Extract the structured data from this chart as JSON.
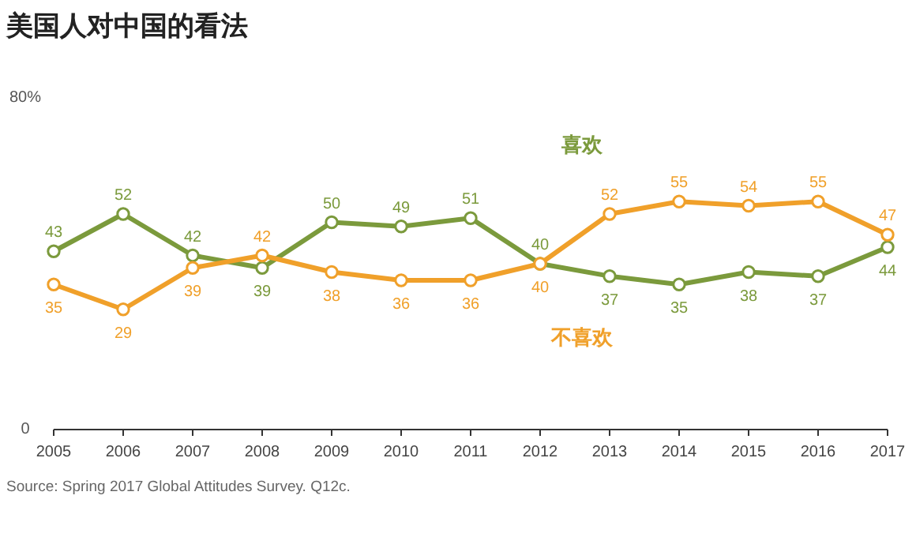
{
  "chart_data": {
    "type": "line",
    "title": "美国人对中国的看法",
    "x": [
      2005,
      2006,
      2007,
      2008,
      2009,
      2010,
      2011,
      2012,
      2013,
      2014,
      2015,
      2016,
      2017
    ],
    "xlim": [
      2005,
      2017
    ],
    "xticks": [
      2005,
      2006,
      2007,
      2008,
      2009,
      2010,
      2011,
      2012,
      2013,
      2014,
      2015,
      2016,
      2017
    ],
    "ylim": [
      0,
      80
    ],
    "yticks": [
      {
        "value": 0,
        "label": "0"
      },
      {
        "value": 80,
        "label": "80%"
      }
    ],
    "series": [
      {
        "name": "喜欢",
        "color": "#7b9a3c",
        "values": [
          43,
          52,
          42,
          39,
          50,
          49,
          51,
          40,
          37,
          35,
          38,
          37,
          44
        ]
      },
      {
        "name": "不喜欢",
        "color": "#f0a02a",
        "values": [
          35,
          29,
          39,
          42,
          38,
          36,
          36,
          40,
          52,
          55,
          54,
          55,
          47
        ]
      }
    ],
    "marker": "circle",
    "line_style": "solid",
    "data_labels": true,
    "grid": false,
    "annotations": [
      "Source: Spring 2017 Global Attitudes Survey. Q12c."
    ]
  }
}
